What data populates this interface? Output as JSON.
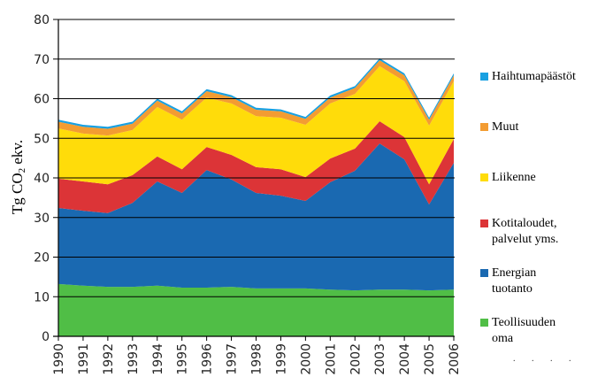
{
  "chart_data": {
    "type": "area",
    "stacked": true,
    "title": "",
    "xlabel": "",
    "ylabel": "Tg CO2 ekv.",
    "ylabel_parts": {
      "prefix": "Tg CO",
      "subscript": "2",
      "suffix": " ekv."
    },
    "ylim": [
      0,
      80
    ],
    "yticks": [
      0,
      10,
      20,
      30,
      40,
      50,
      60,
      70,
      80
    ],
    "grid": "horizontal (above data)",
    "legend_position": "right",
    "x": [
      "1990",
      "1991",
      "1992",
      "1993",
      "1994",
      "1995",
      "1996",
      "1997",
      "1998",
      "1999",
      "2000",
      "2001",
      "2002",
      "2003",
      "2004",
      "2005",
      "2006"
    ],
    "series": [
      {
        "name": "Teollisuuden oma energiantuotanto",
        "legend_label": "Teollisuuden\noma",
        "color": "#50be46",
        "values": [
          13.2,
          12.8,
          12.5,
          12.5,
          12.8,
          12.3,
          12.3,
          12.5,
          12.1,
          12.1,
          12.1,
          11.8,
          11.6,
          11.8,
          11.8,
          11.6,
          11.8
        ]
      },
      {
        "name": "Energian tuotanto",
        "legend_label": "Energian\ntuotanto",
        "color": "#1a69b1",
        "values": [
          19.2,
          18.9,
          18.6,
          21.2,
          26.3,
          23.9,
          29.7,
          27.1,
          24.1,
          23.4,
          22.1,
          27.1,
          30.2,
          36.9,
          32.9,
          21.7,
          32.0
        ]
      },
      {
        "name": "Kotitaloudet, palvelut yms.",
        "legend_label": "Kotitaloudet,\npalvelut yms.",
        "color": "#dc3437",
        "values": [
          7.4,
          7.4,
          7.3,
          7.0,
          6.3,
          6.0,
          5.8,
          6.2,
          6.5,
          6.7,
          6.0,
          6.0,
          5.6,
          5.6,
          5.6,
          5.1,
          6.0
        ]
      },
      {
        "name": "Liikenne",
        "legend_label": "Liikenne",
        "color": "#ffdc0a",
        "values": [
          12.7,
          12.1,
          12.3,
          11.4,
          12.5,
          12.5,
          12.5,
          13.0,
          12.9,
          13.0,
          13.2,
          13.9,
          13.8,
          13.9,
          14.1,
          14.8,
          14.6
        ]
      },
      {
        "name": "Muut",
        "legend_label": "Muut",
        "color": "#f39c32",
        "values": [
          1.7,
          1.7,
          1.7,
          1.6,
          1.6,
          1.6,
          1.6,
          1.6,
          1.6,
          1.6,
          1.5,
          1.5,
          1.5,
          1.5,
          1.5,
          1.5,
          1.5
        ]
      },
      {
        "name": "Haihtumapäästöt",
        "legend_label": "Haihtumapäästöt",
        "color": "#18a0e1",
        "values": [
          0.5,
          0.5,
          0.5,
          0.5,
          0.5,
          0.5,
          0.5,
          0.5,
          0.5,
          0.5,
          0.5,
          0.5,
          0.5,
          0.5,
          0.5,
          0.5,
          0.5
        ]
      }
    ],
    "legend_order": [
      "Haihtumapäästöt",
      "Muut",
      "Liikenne",
      "Kotitaloudet, palvelut yms.",
      "Energian tuotanto",
      "Teollisuuden oma energiantuotanto"
    ]
  }
}
